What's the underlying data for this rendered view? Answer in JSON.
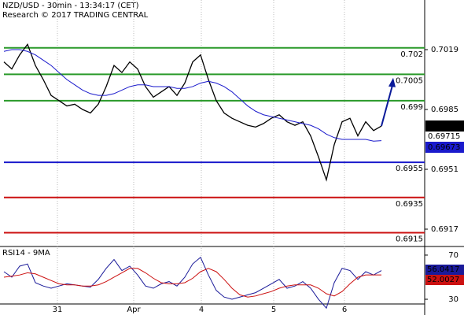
{
  "chart_data": [
    {
      "type": "financial",
      "title": "NZD/USD - 30min - 13:34:17 (CET)",
      "subtitle": "Research © 2017 TRADING CENTRAL",
      "ylim": [
        0.69076,
        0.70472
      ],
      "yticks": [
        0.6917,
        0.6951,
        0.6985,
        0.7019
      ],
      "x_labels": [
        "31",
        "Apr",
        "4",
        "5",
        "6"
      ],
      "levels": [
        {
          "value": 0.702,
          "color": "#2a9a2a"
        },
        {
          "value": 0.7005,
          "color": "#2a9a2a"
        },
        {
          "value": 0.699,
          "color": "#2a9a2a"
        },
        {
          "value": 0.6955,
          "color": "#1a1acc"
        },
        {
          "value": 0.6935,
          "color": "#cc1111"
        },
        {
          "value": 0.6915,
          "color": "#cc1111"
        }
      ],
      "series": [
        {
          "color": "#000000",
          "values": [
            0.7012,
            0.7008,
            0.7016,
            0.7022,
            0.701,
            0.7002,
            0.6993,
            0.699,
            0.6987,
            0.6988,
            0.6985,
            0.6983,
            0.6988,
            0.6998,
            0.701,
            0.7006,
            0.7012,
            0.7008,
            0.6998,
            0.6992,
            0.6995,
            0.6998,
            0.6993,
            0.7,
            0.7012,
            0.7016,
            0.7002,
            0.699,
            0.6983,
            0.698,
            0.6978,
            0.6976,
            0.6975,
            0.6977,
            0.698,
            0.6982,
            0.6978,
            0.6976,
            0.6978,
            0.697,
            0.6958,
            0.6945,
            0.6965,
            0.6978,
            0.698,
            0.697,
            0.6978,
            0.6973,
            0.69756
          ]
        },
        {
          "color": "#1a1acc",
          "values": [
            0.7018,
            0.7019,
            0.7019,
            0.7018,
            0.7016,
            0.7013,
            0.701,
            0.7006,
            0.7002,
            0.6999,
            0.6996,
            0.6994,
            0.6993,
            0.6993,
            0.6994,
            0.6996,
            0.6998,
            0.6999,
            0.6999,
            0.6998,
            0.6998,
            0.6998,
            0.6997,
            0.6997,
            0.6998,
            0.7,
            0.7001,
            0.7,
            0.6998,
            0.6995,
            0.6991,
            0.6987,
            0.6984,
            0.6982,
            0.6981,
            0.698,
            0.6979,
            0.6978,
            0.6977,
            0.6976,
            0.6974,
            0.6971,
            0.6969,
            0.6968,
            0.6968,
            0.6968,
            0.6968,
            0.6967,
            0.69673
          ]
        }
      ],
      "marker": {
        "value": 0.69715,
        "color": "#cc1111"
      },
      "projection": {
        "value": 0.7003,
        "color": "#0a1a99"
      }
    },
    {
      "type": "line",
      "title": "RSI14 - 9MA",
      "ylim": [
        18.6,
        77.1
      ],
      "yticks": [
        30,
        70
      ],
      "series": [
        {
          "color": "#1a1a99",
          "values": [
            55,
            50,
            60,
            62,
            45,
            42,
            40,
            42,
            44,
            43,
            42,
            41,
            48,
            58,
            66,
            56,
            60,
            52,
            42,
            40,
            44,
            46,
            42,
            50,
            62,
            68,
            52,
            38,
            32,
            30,
            32,
            34,
            36,
            40,
            44,
            48,
            40,
            42,
            46,
            40,
            30,
            22,
            45,
            58,
            56,
            48,
            55,
            52,
            56.0417
          ]
        },
        {
          "color": "#cc1111",
          "values": [
            50,
            51,
            52,
            54,
            53,
            50,
            47,
            44,
            43,
            43,
            42,
            42,
            43,
            46,
            50,
            54,
            58,
            58,
            54,
            49,
            45,
            44,
            44,
            45,
            49,
            55,
            58,
            55,
            48,
            40,
            34,
            32,
            33,
            35,
            37,
            40,
            42,
            43,
            43,
            43,
            40,
            35,
            33,
            37,
            44,
            50,
            52,
            52,
            52.0027
          ]
        }
      ]
    }
  ]
}
